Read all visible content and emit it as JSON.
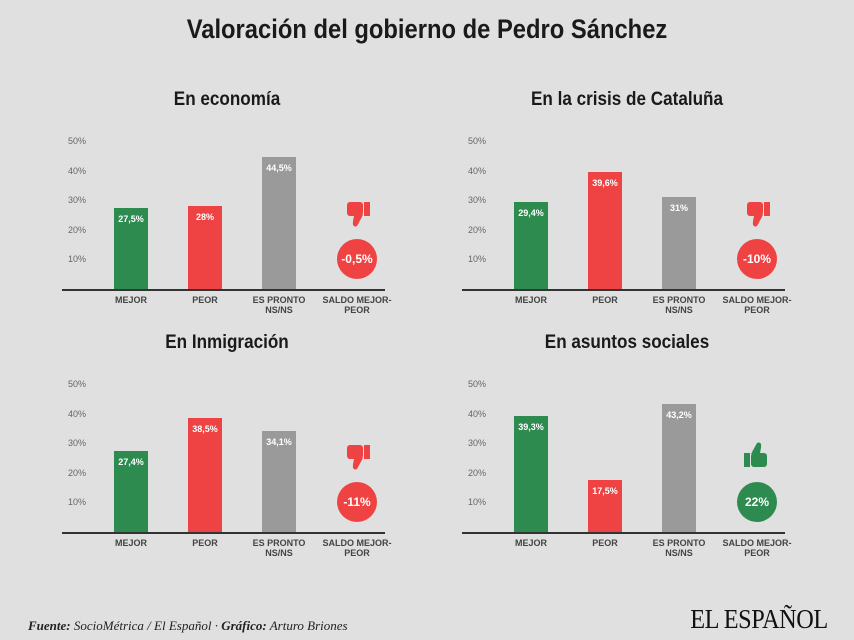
{
  "title": "Valoración del gobierno de Pedro Sánchez",
  "chart_data": [
    {
      "type": "bar",
      "title": "En economía",
      "categories": [
        "MEJOR",
        "PEOR",
        "ES PRONTO NS/NS"
      ],
      "values": [
        27.5,
        28,
        44.5
      ],
      "value_labels": [
        "27,5%",
        "28%",
        "44,5%"
      ],
      "colors": [
        "#2e8b4f",
        "#ef4343",
        "#9a9a9a"
      ],
      "ylim": [
        0,
        50
      ],
      "yticks": [
        {
          "value": 10,
          "label": "10%"
        },
        {
          "value": 20,
          "label": "20%"
        },
        {
          "value": 30,
          "label": "30%"
        },
        {
          "value": 40,
          "label": "40%"
        },
        {
          "value": 50,
          "label": "50%"
        }
      ],
      "balance": {
        "label": "SALDO MEJOR-PEOR",
        "value": -0.5,
        "value_label": "-0,5%",
        "color": "#ef4343"
      }
    },
    {
      "type": "bar",
      "title": "En la crisis de Cataluña",
      "categories": [
        "MEJOR",
        "PEOR",
        "ES PRONTO NS/NS"
      ],
      "values": [
        29.4,
        39.6,
        31
      ],
      "value_labels": [
        "29,4%",
        "39,6%",
        "31%"
      ],
      "colors": [
        "#2e8b4f",
        "#ef4343",
        "#9a9a9a"
      ],
      "ylim": [
        0,
        50
      ],
      "yticks": [
        {
          "value": 10,
          "label": "10%"
        },
        {
          "value": 20,
          "label": "20%"
        },
        {
          "value": 30,
          "label": "30%"
        },
        {
          "value": 40,
          "label": "40%"
        },
        {
          "value": 50,
          "label": "50%"
        }
      ],
      "balance": {
        "label": "SALDO MEJOR-PEOR",
        "value": -10,
        "value_label": "-10%",
        "color": "#ef4343"
      }
    },
    {
      "type": "bar",
      "title": "En Inmigración",
      "categories": [
        "MEJOR",
        "PEOR",
        "ES PRONTO NS/NS"
      ],
      "values": [
        27.4,
        38.5,
        34.1
      ],
      "value_labels": [
        "27,4%",
        "38,5%",
        "34,1%"
      ],
      "colors": [
        "#2e8b4f",
        "#ef4343",
        "#9a9a9a"
      ],
      "ylim": [
        0,
        50
      ],
      "yticks": [
        {
          "value": 10,
          "label": "10%"
        },
        {
          "value": 20,
          "label": "20%"
        },
        {
          "value": 30,
          "label": "30%"
        },
        {
          "value": 40,
          "label": "40%"
        },
        {
          "value": 50,
          "label": "50%"
        }
      ],
      "balance": {
        "label": "SALDO MEJOR-PEOR",
        "value": -11,
        "value_label": "-11%",
        "color": "#ef4343"
      }
    },
    {
      "type": "bar",
      "title": "En asuntos sociales",
      "categories": [
        "MEJOR",
        "PEOR",
        "ES PRONTO NS/NS"
      ],
      "values": [
        39.3,
        17.5,
        43.2
      ],
      "value_labels": [
        "39,3%",
        "17,5%",
        "43,2%"
      ],
      "colors": [
        "#2e8b4f",
        "#ef4343",
        "#9a9a9a"
      ],
      "ylim": [
        0,
        50
      ],
      "yticks": [
        {
          "value": 10,
          "label": "10%"
        },
        {
          "value": 20,
          "label": "20%"
        },
        {
          "value": 30,
          "label": "30%"
        },
        {
          "value": 40,
          "label": "40%"
        },
        {
          "value": 50,
          "label": "50%"
        }
      ],
      "balance": {
        "label": "SALDO MEJOR-PEOR",
        "value": 22,
        "value_label": "22%",
        "color": "#2e8b4f"
      }
    }
  ],
  "footer": {
    "source_label": "Fuente:",
    "source": "SocioMétrica / El Español",
    "separator": "·",
    "credit_label": "Gráfico:",
    "credit": "Arturo Briones"
  },
  "logo": "EL ESPAÑOL"
}
